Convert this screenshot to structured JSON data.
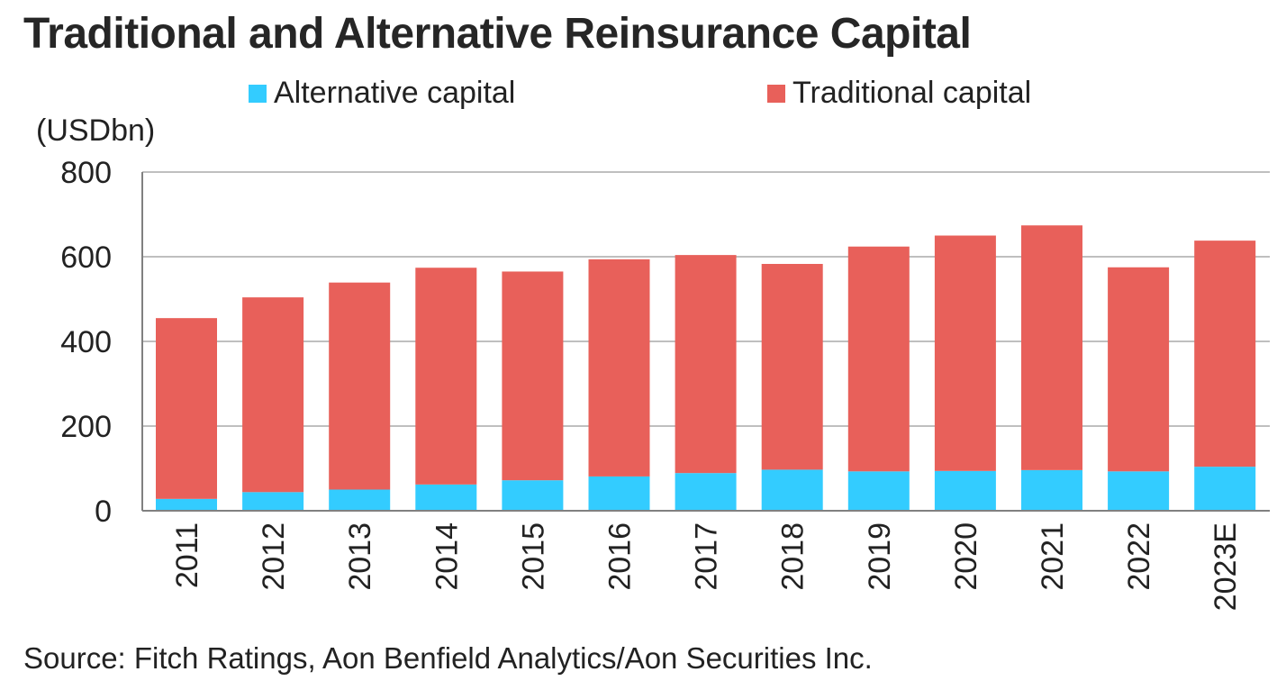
{
  "title": "Traditional and Alternative Reinsurance Capital",
  "unit_label": "(USDbn)",
  "source": "Source: Fitch Ratings, Aon Benfield Analytics/Aon Securities Inc.",
  "colors": {
    "alternative": "#33CCFF",
    "traditional": "#E8605A",
    "grid": "#BFBFBF",
    "axis": "#808080"
  },
  "chart_data": {
    "type": "bar",
    "stacked": true,
    "categories": [
      "2011",
      "2012",
      "2013",
      "2014",
      "2015",
      "2016",
      "2017",
      "2018",
      "2019",
      "2020",
      "2021",
      "2022",
      "2023E"
    ],
    "series": [
      {
        "name": "Alternative capital",
        "values": [
          28,
          44,
          50,
          62,
          72,
          81,
          89,
          97,
          93,
          94,
          96,
          93,
          104
        ]
      },
      {
        "name": "Traditional capital",
        "values": [
          427,
          460,
          489,
          512,
          493,
          513,
          515,
          486,
          531,
          556,
          578,
          482,
          534
        ]
      }
    ],
    "ylim": [
      0,
      800
    ],
    "yticks": [
      0,
      200,
      400,
      600,
      800
    ],
    "grid": true,
    "legend_position": "top"
  }
}
